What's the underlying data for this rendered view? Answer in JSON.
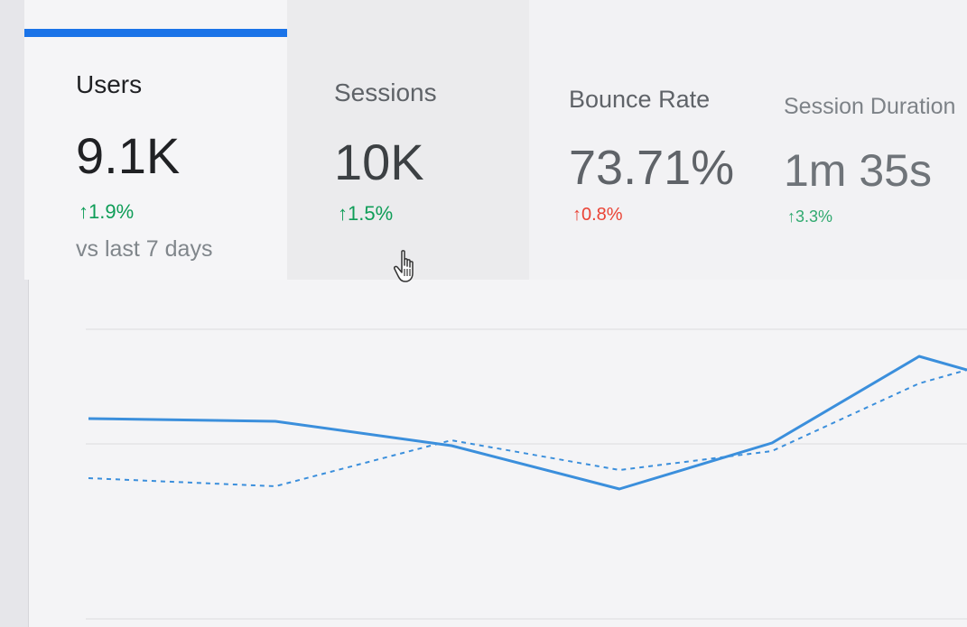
{
  "metrics": [
    {
      "label": "Users",
      "value": "9.1K",
      "delta": "1.9%",
      "direction": "up"
    },
    {
      "label": "Sessions",
      "value": "10K",
      "delta": "1.5%",
      "direction": "up"
    },
    {
      "label": "Bounce Rate",
      "value": "73.71%",
      "delta": "0.8%",
      "direction": "up",
      "color": "red"
    },
    {
      "label": "Session Duration",
      "value": "1m 35s",
      "delta": "3.3%",
      "direction": "up"
    }
  ],
  "compare_text": "vs last 7 days",
  "colors": {
    "accent": "#1a73e8",
    "positive": "#0f9d58",
    "negative": "#ea4335",
    "line_current": "#3b8fdc",
    "line_previous": "#3b8fdc"
  },
  "icons": {
    "arrow_up": "↑",
    "cursor": "hand-pointer-icon"
  },
  "chart_data": {
    "type": "line",
    "grid": true,
    "series": [
      {
        "style": "solid",
        "values": [
          62,
          61,
          52,
          36,
          53,
          85,
          80
        ]
      },
      {
        "style": "dashed",
        "values": [
          40,
          37,
          54,
          43,
          50,
          75,
          80
        ]
      }
    ]
  }
}
